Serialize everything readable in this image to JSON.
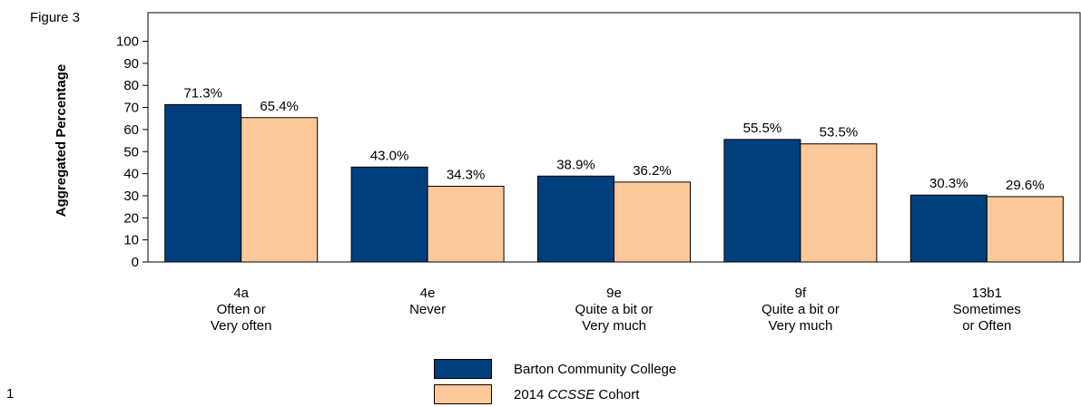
{
  "figure_label": "Figure 3",
  "page_number": "1",
  "colors": {
    "series1": "#003f7d",
    "series2": "#fdc99a"
  },
  "chart_data": {
    "type": "bar",
    "ylabel": "Aggregated Percentage",
    "ylim": [
      0,
      100
    ],
    "yticks": [
      0,
      10,
      20,
      30,
      40,
      50,
      60,
      70,
      80,
      90,
      100
    ],
    "categories": [
      [
        "4a",
        "Often or",
        "Very often"
      ],
      [
        "4e",
        "Never"
      ],
      [
        "9e",
        "Quite a bit or",
        "Very much"
      ],
      [
        "9f",
        "Quite a bit or",
        "Very much"
      ],
      [
        "13b1",
        "Sometimes",
        "or Often"
      ]
    ],
    "series": [
      {
        "name": "Barton Community College",
        "values": [
          71.3,
          43.0,
          38.9,
          55.5,
          30.3
        ],
        "labels": [
          "71.3%",
          "43.0%",
          "38.9%",
          "55.5%",
          "30.3%"
        ]
      },
      {
        "name": "2014 CCSSE Cohort",
        "values": [
          65.4,
          34.3,
          36.2,
          53.5,
          29.6
        ],
        "labels": [
          "65.4%",
          "34.3%",
          "36.2%",
          "53.5%",
          "29.6%"
        ]
      }
    ],
    "legend": {
      "placement": "bottom",
      "entries": [
        {
          "prefix": "Barton Community College",
          "italic": "",
          "suffix": ""
        },
        {
          "prefix": "2014 ",
          "italic": "CCSSE",
          "suffix": " Cohort"
        }
      ]
    }
  }
}
